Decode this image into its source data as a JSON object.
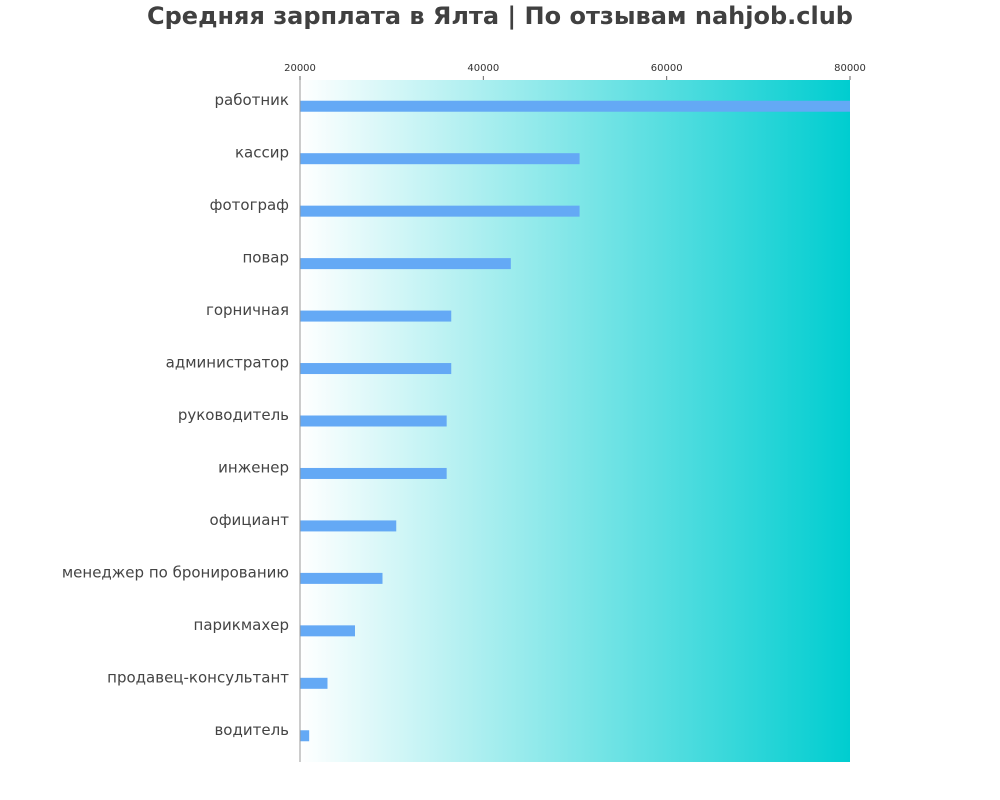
{
  "chart_data": {
    "type": "bar",
    "orientation": "horizontal",
    "title": "Средняя зарплата в Ялта | По отзывам nahjob.club",
    "xlabel": "",
    "ylabel": "",
    "xlim": [
      20000,
      80000
    ],
    "xticks": [
      20000,
      40000,
      60000,
      80000
    ],
    "x_axis_position": "top",
    "grid": false,
    "legend": "none",
    "categories": [
      "работник",
      "кассир",
      "фотограф",
      "повар",
      "горничная",
      "администратор",
      "руководитель",
      "инженер",
      "официант",
      "менеджер по бронированию",
      "парикмахер",
      "продавец-консультант",
      "водитель"
    ],
    "values": [
      80000,
      50500,
      50500,
      43000,
      36500,
      36500,
      36000,
      36000,
      30500,
      29000,
      26000,
      23000,
      21000
    ],
    "bar_color": "#64a9f5",
    "background_gradient": [
      "#ffffff",
      "#00cdd0"
    ]
  }
}
